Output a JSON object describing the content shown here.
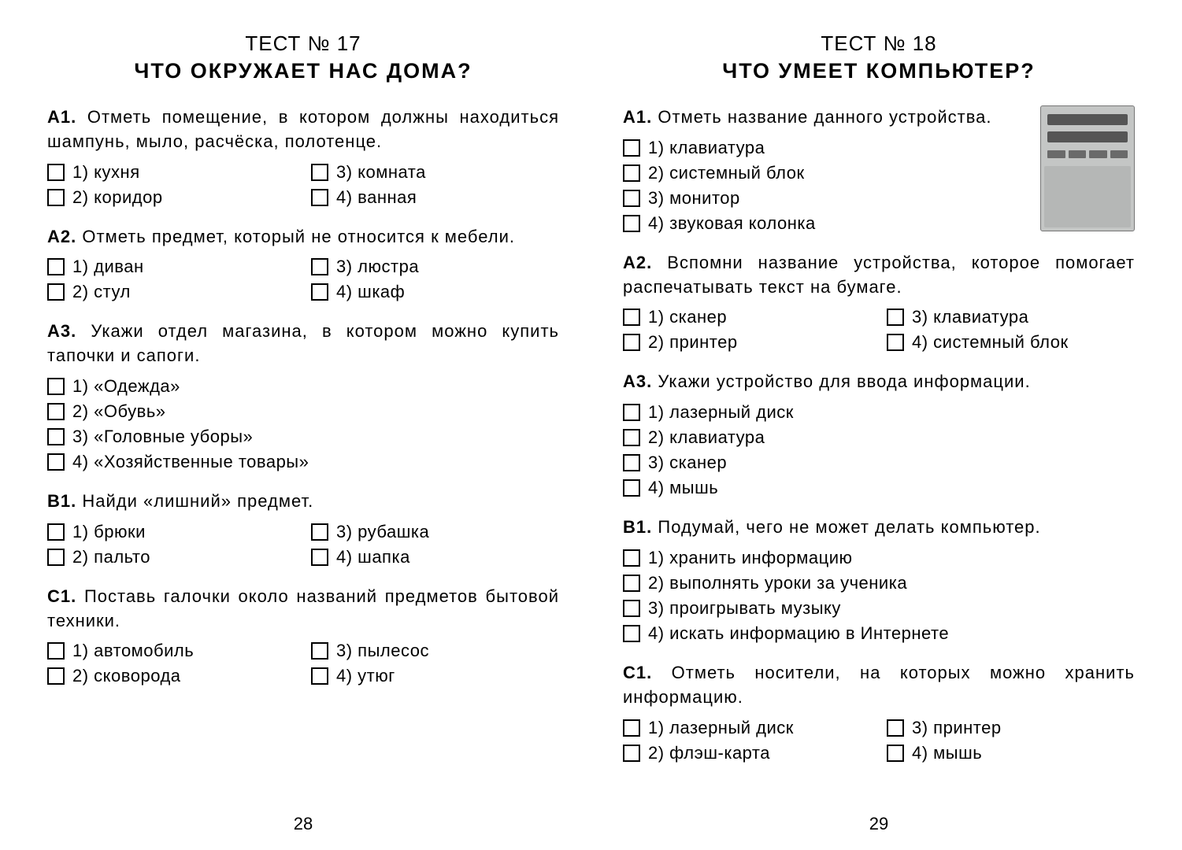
{
  "left": {
    "test_number": "ТЕСТ № 17",
    "test_title": "ЧТО ОКРУЖАЕТ НАС ДОМА?",
    "page_number": "28",
    "questions": [
      {
        "id": "А1.",
        "prompt": "Отметь помещение, в котором должны находиться шампунь, мыло, расчёска, полотенце.",
        "layout": "grid",
        "options": [
          "1) кухня",
          "3) комната",
          "2) коридор",
          "4) ванная"
        ]
      },
      {
        "id": "А2.",
        "prompt": "Отметь предмет, который не относится к мебели.",
        "layout": "grid",
        "options": [
          "1) диван",
          "3) люстра",
          "2) стул",
          "4) шкаф"
        ]
      },
      {
        "id": "А3.",
        "prompt": "Укажи отдел магазина, в котором можно купить тапочки и сапоги.",
        "layout": "stack",
        "options": [
          "1) «Одежда»",
          "2) «Обувь»",
          "3) «Головные уборы»",
          "4) «Хозяйственные товары»"
        ]
      },
      {
        "id": "В1.",
        "prompt": "Найди «лишний» предмет.",
        "layout": "grid",
        "options": [
          "1) брюки",
          "3) рубашка",
          "2) пальто",
          "4) шапка"
        ]
      },
      {
        "id": "С1.",
        "prompt": "Поставь галочки около названий предметов бытовой техники.",
        "layout": "grid",
        "options": [
          "1) автомобиль",
          "3) пылесос",
          "2) сковорода",
          "4) утюг"
        ]
      }
    ]
  },
  "right": {
    "test_number": "ТЕСТ № 18",
    "test_title": "ЧТО УМЕЕТ КОМПЬЮТЕР?",
    "page_number": "29",
    "image_label": "системный блок",
    "questions": [
      {
        "id": "А1.",
        "prompt": "Отметь название данного устройства.",
        "layout": "stack",
        "has_image": true,
        "options": [
          "1) клавиатура",
          "2) системный блок",
          "3) монитор",
          "4) звуковая колонка"
        ]
      },
      {
        "id": "А2.",
        "prompt": "Вспомни название устройства, которое помогает распечатывать текст на бумаге.",
        "layout": "grid",
        "options": [
          "1) сканер",
          "3) клавиатура",
          "2) принтер",
          "4) системный блок"
        ]
      },
      {
        "id": "А3.",
        "prompt": "Укажи устройство для ввода информации.",
        "layout": "stack",
        "options": [
          "1) лазерный диск",
          "2) клавиатура",
          "3) сканер",
          "4) мышь"
        ]
      },
      {
        "id": "В1.",
        "prompt": "Подумай, чего не может делать компьютер.",
        "layout": "stack",
        "options": [
          "1) хранить информацию",
          "2) выполнять уроки за ученика",
          "3) проигрывать музыку",
          "4) искать информацию в Интернете"
        ]
      },
      {
        "id": "С1.",
        "prompt": "Отметь носители, на которых можно хранить информацию.",
        "layout": "grid",
        "options": [
          "1) лазерный диск",
          "3) принтер",
          "2) флэш-карта",
          "4) мышь"
        ]
      }
    ]
  },
  "style": {
    "background": "#ffffff",
    "text_color": "#000000",
    "checkbox_border": "#000000",
    "base_font_size": 22,
    "title_font_size": 27,
    "number_font_size": 26
  }
}
